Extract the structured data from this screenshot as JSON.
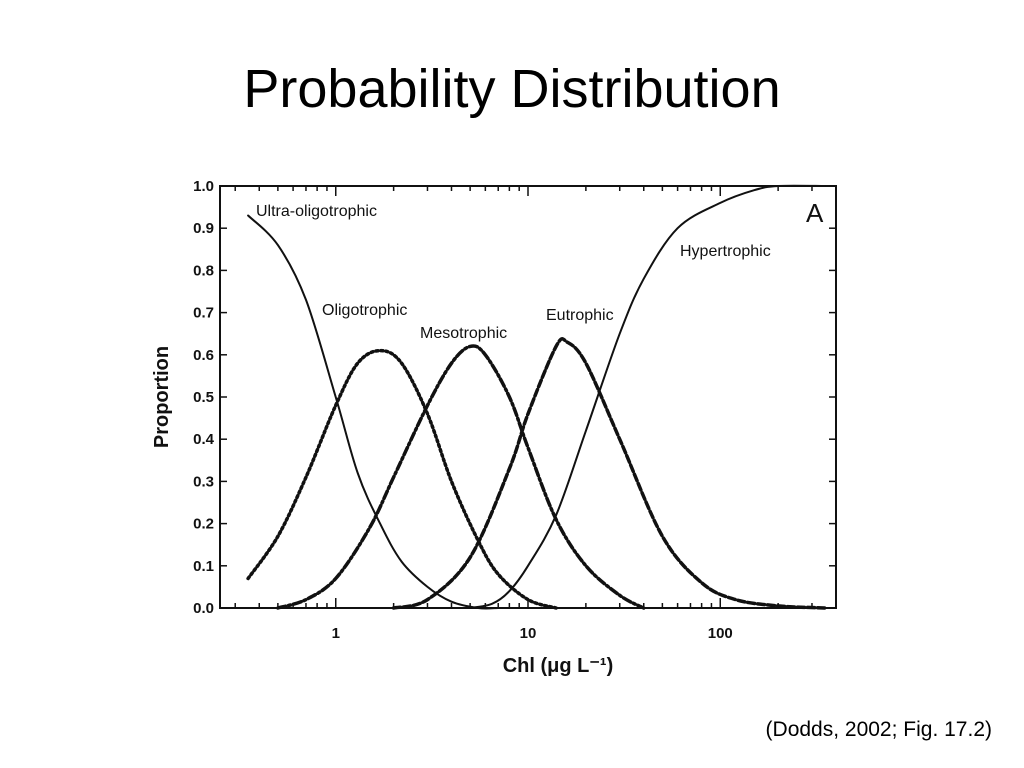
{
  "slide": {
    "title": "Probability Distribution",
    "citation": "(Dodds, 2002; Fig. 17.2)"
  },
  "chart_data": {
    "type": "line",
    "xlabel": "Chl (μg L⁻¹)",
    "ylabel": "Proportion",
    "xscale": "log",
    "xlim": [
      0.25,
      400
    ],
    "ylim": [
      0,
      1
    ],
    "xticks": [
      "1",
      "10",
      "100"
    ],
    "yticks": [
      "0.0",
      "0.1",
      "0.2",
      "0.3",
      "0.4",
      "0.5",
      "0.6",
      "0.7",
      "0.8",
      "0.9",
      "1.0"
    ],
    "panel_label": "A",
    "grid": false,
    "legend": "none",
    "series": [
      {
        "name": "Ultra-oligotrophic",
        "style": "solid",
        "points": [
          [
            0.35,
            0.93
          ],
          [
            0.5,
            0.86
          ],
          [
            0.7,
            0.73
          ],
          [
            1.0,
            0.5
          ],
          [
            1.3,
            0.32
          ],
          [
            1.7,
            0.2
          ],
          [
            2.2,
            0.11
          ],
          [
            3.0,
            0.05
          ],
          [
            4.0,
            0.015
          ],
          [
            5.5,
            0.0
          ],
          [
            7.0,
            0.0
          ]
        ]
      },
      {
        "name": "Oligotrophic",
        "style": "dotted",
        "points": [
          [
            0.35,
            0.07
          ],
          [
            0.5,
            0.17
          ],
          [
            0.7,
            0.31
          ],
          [
            1.0,
            0.48
          ],
          [
            1.3,
            0.58
          ],
          [
            1.7,
            0.61
          ],
          [
            2.2,
            0.58
          ],
          [
            3.0,
            0.46
          ],
          [
            4.0,
            0.3
          ],
          [
            5.5,
            0.16
          ],
          [
            7.0,
            0.08
          ],
          [
            10.0,
            0.02
          ],
          [
            14.0,
            0.0
          ]
        ]
      },
      {
        "name": "Mesotrophic",
        "style": "dash-dot",
        "points": [
          [
            0.5,
            0.0
          ],
          [
            0.7,
            0.02
          ],
          [
            1.0,
            0.07
          ],
          [
            1.5,
            0.19
          ],
          [
            2.0,
            0.31
          ],
          [
            3.0,
            0.48
          ],
          [
            4.0,
            0.58
          ],
          [
            5.0,
            0.62
          ],
          [
            6.0,
            0.6
          ],
          [
            8.0,
            0.5
          ],
          [
            10.0,
            0.38
          ],
          [
            14.0,
            0.21
          ],
          [
            20.0,
            0.1
          ],
          [
            30.0,
            0.03
          ],
          [
            40.0,
            0.0
          ]
        ]
      },
      {
        "name": "Eutrophic",
        "style": "dashed",
        "points": [
          [
            2.0,
            0.0
          ],
          [
            3.0,
            0.02
          ],
          [
            5.0,
            0.12
          ],
          [
            8.0,
            0.33
          ],
          [
            10.0,
            0.46
          ],
          [
            14.0,
            0.62
          ],
          [
            16.0,
            0.63
          ],
          [
            20.0,
            0.58
          ],
          [
            30.0,
            0.4
          ],
          [
            50.0,
            0.17
          ],
          [
            80.0,
            0.06
          ],
          [
            120.0,
            0.02
          ],
          [
            200.0,
            0.005
          ],
          [
            350.0,
            0.0
          ]
        ]
      },
      {
        "name": "Hypertrophic",
        "style": "solid",
        "points": [
          [
            5.0,
            0.0
          ],
          [
            6.5,
            0.01
          ],
          [
            8.0,
            0.04
          ],
          [
            10.0,
            0.1
          ],
          [
            14.0,
            0.22
          ],
          [
            20.0,
            0.42
          ],
          [
            30.0,
            0.65
          ],
          [
            40.0,
            0.78
          ],
          [
            60.0,
            0.9
          ],
          [
            100.0,
            0.96
          ],
          [
            150.0,
            0.99
          ],
          [
            200.0,
            1.0
          ],
          [
            350.0,
            1.0
          ]
        ]
      }
    ]
  }
}
